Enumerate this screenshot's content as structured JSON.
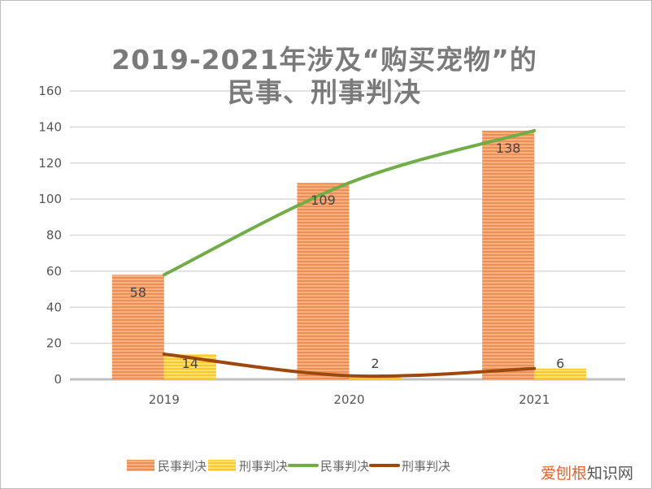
{
  "chart_data": {
    "type": "bar",
    "title_lines": [
      "2019-2021年涉及“购买宠物”的",
      "民事、刑事判决"
    ],
    "categories": [
      "2019",
      "2020",
      "2021"
    ],
    "ylim": [
      0,
      160
    ],
    "yticks": [
      0,
      20,
      40,
      60,
      80,
      100,
      120,
      140,
      160
    ],
    "grid": true,
    "legend_placement": "bottom",
    "series": [
      {
        "name": "民事判决",
        "kind": "bar",
        "values": [
          58,
          109,
          138
        ],
        "color": "#f0955a"
      },
      {
        "name": "刑事判决",
        "kind": "bar",
        "values": [
          14,
          2,
          6
        ],
        "color": "#ffcc33"
      },
      {
        "name": "民事判决",
        "kind": "line",
        "values": [
          58,
          109,
          138
        ],
        "color": "#70ad47"
      },
      {
        "name": "刑事判决",
        "kind": "line",
        "values": [
          14,
          2,
          6
        ],
        "color": "#9e480e"
      }
    ]
  },
  "watermark": {
    "part1": "爱刨根",
    "part2": "知识网",
    "color1": "#e8612c",
    "color2": "#555555"
  }
}
